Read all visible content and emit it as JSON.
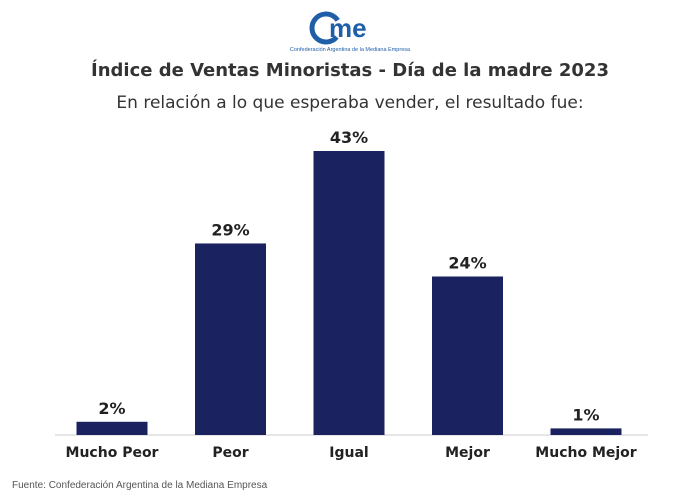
{
  "logo": {
    "text": "CAME",
    "tagline": "Confederación Argentina de la Mediana Empresa"
  },
  "colors": {
    "bar": "#1b2260",
    "brand": "#1f5fa8",
    "axis": "#cccccc",
    "text": "#222222"
  },
  "chart_data": {
    "type": "bar",
    "title": "Índice de Ventas Minoristas - Día de la madre 2023",
    "subtitle": "En relación a lo que esperaba vender, el resultado fue:",
    "categories": [
      "Mucho Peor",
      "Peor",
      "Igual",
      "Mejor",
      "Mucho Mejor"
    ],
    "values": [
      2,
      29,
      43,
      24,
      1
    ],
    "data_labels": [
      "2%",
      "29%",
      "43%",
      "24%",
      "1%"
    ],
    "xlabel": "",
    "ylabel": "",
    "ylim": [
      0,
      43
    ],
    "grid": false,
    "legend": "none"
  },
  "source": "Fuente: Confederación Argentina de la Mediana Empresa"
}
